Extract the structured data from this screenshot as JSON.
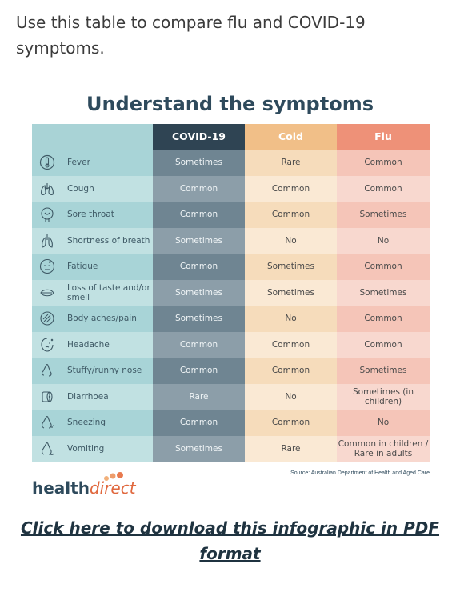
{
  "intro_text": "Use this table to compare flu and COVID-19 symptoms.",
  "infographic": {
    "title": "Understand the symptoms",
    "headers": {
      "covid": "COVID-19",
      "cold": "Cold",
      "flu": "Flu"
    },
    "rows": [
      {
        "symptom": "Fever",
        "icon": "thermometer-icon",
        "covid": "Sometimes",
        "cold": "Rare",
        "flu": "Common"
      },
      {
        "symptom": "Cough",
        "icon": "lungs-icon",
        "covid": "Common",
        "cold": "Common",
        "flu": "Common"
      },
      {
        "symptom": "Sore throat",
        "icon": "sore-throat-icon",
        "covid": "Common",
        "cold": "Common",
        "flu": "Sometimes"
      },
      {
        "symptom": "Shortness of breath",
        "icon": "breath-icon",
        "covid": "Sometimes",
        "cold": "No",
        "flu": "No"
      },
      {
        "symptom": "Fatigue",
        "icon": "tired-face-icon",
        "covid": "Common",
        "cold": "Sometimes",
        "flu": "Common"
      },
      {
        "symptom": "Loss of taste and/or smell",
        "icon": "mouth-icon",
        "covid": "Sometimes",
        "cold": "Sometimes",
        "flu": "Sometimes"
      },
      {
        "symptom": "Body aches/pain",
        "icon": "body-ache-icon",
        "covid": "Sometimes",
        "cold": "No",
        "flu": "Common"
      },
      {
        "symptom": "Headache",
        "icon": "headache-icon",
        "covid": "Common",
        "cold": "Common",
        "flu": "Common"
      },
      {
        "symptom": "Stuffy/runny nose",
        "icon": "nose-icon",
        "covid": "Common",
        "cold": "Common",
        "flu": "Sometimes"
      },
      {
        "symptom": "Diarrhoea",
        "icon": "toilet-roll-icon",
        "covid": "Rare",
        "cold": "No",
        "flu": "Sometimes (in children)"
      },
      {
        "symptom": "Sneezing",
        "icon": "sneeze-icon",
        "covid": "Common",
        "cold": "Common",
        "flu": "No"
      },
      {
        "symptom": "Vomiting",
        "icon": "vomit-icon",
        "covid": "Sometimes",
        "cold": "Rare",
        "flu": "Common in children / Rare in adults"
      }
    ],
    "source": "Source: Australian Department of Health and Aged Care",
    "logo": {
      "bold": "health",
      "light": "direct"
    }
  },
  "download_link": "Click here to download this infographic in PDF format",
  "colors": {
    "title": "#2e4a5c",
    "covid_header": "#2f4453",
    "cold_header": "#f1bf88",
    "flu_header": "#ee9178",
    "label_column": "#a8d4d7"
  }
}
